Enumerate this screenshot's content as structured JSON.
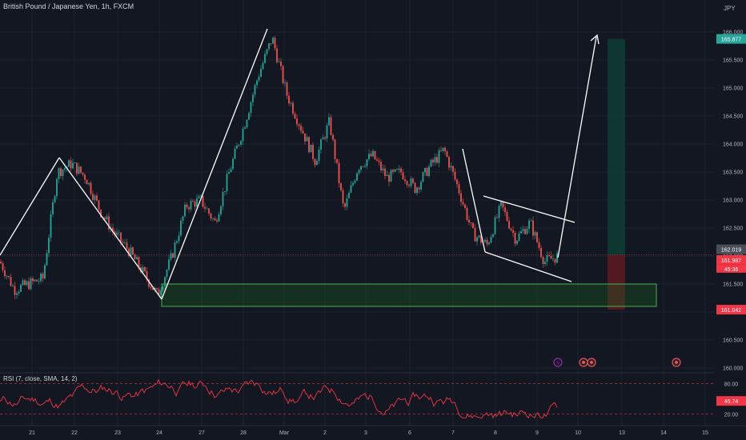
{
  "header": {
    "title": "British Pound / Japanese Yen, 1h, FXCM",
    "currency": "JPY"
  },
  "rsi": {
    "label": "RSI (7, close, SMA, 14, 2)",
    "value_label": "45.74",
    "levels": [
      "80.00",
      "20.00"
    ]
  },
  "price_badges": {
    "target": "165.877",
    "last": "162.019",
    "bid": "161.987",
    "countdown": "45:36",
    "stop": "161.042"
  },
  "colors": {
    "background": "#131722",
    "grid": "#1f2330",
    "bull": "#26a69a",
    "bear": "#ef5350",
    "rsi_line": "#f23645",
    "zone_fill": "#1b5e20",
    "zone_stroke": "#4caf50",
    "profit_fill": "#0f3b34",
    "loss_fill": "#5a1a20"
  },
  "chart_data": {
    "type": "candlestick",
    "title": "British Pound / Japanese Yen, 1h, FXCM",
    "y_axis": {
      "unit": "JPY",
      "ticks": [
        "166.000",
        "165.500",
        "165.000",
        "164.500",
        "164.000",
        "163.500",
        "163.000",
        "162.500",
        "162.000",
        "161.500",
        "161.000",
        "160.500",
        "160.000"
      ],
      "range": [
        160.0,
        166.0
      ]
    },
    "x_axis": {
      "ticks": [
        "21",
        "22",
        "23",
        "24",
        "27",
        "28",
        "Mar",
        "2",
        "3",
        "6",
        "7",
        "8",
        "9",
        "10",
        "13",
        "14",
        "15"
      ]
    },
    "price_path": [
      {
        "t": "20",
        "p": 161.9
      },
      {
        "t": "20.5",
        "p": 161.4
      },
      {
        "t": "21",
        "p": 161.5
      },
      {
        "t": "21.2",
        "p": 161.6
      },
      {
        "t": "21.5",
        "p": 163.5
      },
      {
        "t": "21.7",
        "p": 163.65
      },
      {
        "t": "22",
        "p": 163.4
      },
      {
        "t": "22.5",
        "p": 162.8
      },
      {
        "t": "23",
        "p": 162.4
      },
      {
        "t": "23.5",
        "p": 162.1
      },
      {
        "t": "23.8",
        "p": 161.7
      },
      {
        "t": "24",
        "p": 161.3
      },
      {
        "t": "24.3",
        "p": 162.0
      },
      {
        "t": "24.6",
        "p": 162.9
      },
      {
        "t": "27",
        "p": 163.0
      },
      {
        "t": "27.3",
        "p": 162.6
      },
      {
        "t": "27.6",
        "p": 163.5
      },
      {
        "t": "28",
        "p": 164.3
      },
      {
        "t": "28.3",
        "p": 165.2
      },
      {
        "t": "28.5",
        "p": 165.9
      },
      {
        "t": "28.7",
        "p": 164.9
      },
      {
        "t": "28.9",
        "p": 164.3
      },
      {
        "t": "Mar",
        "p": 163.7
      },
      {
        "t": "Mar.5",
        "p": 164.4
      },
      {
        "t": "Mar.8",
        "p": 162.8
      },
      {
        "t": "2",
        "p": 163.6
      },
      {
        "t": "2.5",
        "p": 163.8
      },
      {
        "t": "3",
        "p": 163.4
      },
      {
        "t": "3.5",
        "p": 163.5
      },
      {
        "t": "6",
        "p": 163.2
      },
      {
        "t": "6.5",
        "p": 163.6
      },
      {
        "t": "7",
        "p": 163.9
      },
      {
        "t": "7.3",
        "p": 163.2
      },
      {
        "t": "7.6",
        "p": 162.4
      },
      {
        "t": "8",
        "p": 162.2
      },
      {
        "t": "8.3",
        "p": 162.9
      },
      {
        "t": "8.6",
        "p": 162.3
      },
      {
        "t": "9",
        "p": 162.6
      },
      {
        "t": "9.3",
        "p": 161.9
      },
      {
        "t": "9.5",
        "p": 162.0
      }
    ],
    "rsi_levels": [
      80,
      20
    ],
    "rsi_current": 45.74,
    "annotations": {
      "wave_lines": [
        [
          161.8,
          163.8
        ],
        [
          163.8,
          161.2
        ],
        [
          161.2,
          166.0
        ],
        [
          163.9,
          162.0
        ]
      ],
      "falling_wedge": {
        "upper": [
          163.0,
          162.6
        ],
        "lower": [
          162.0,
          161.5
        ]
      },
      "demand_zone": [
        161.1,
        161.5
      ],
      "projection_target": 165.877,
      "position": {
        "entry": 162.019,
        "target": 165.877,
        "stop": 161.042
      }
    }
  }
}
